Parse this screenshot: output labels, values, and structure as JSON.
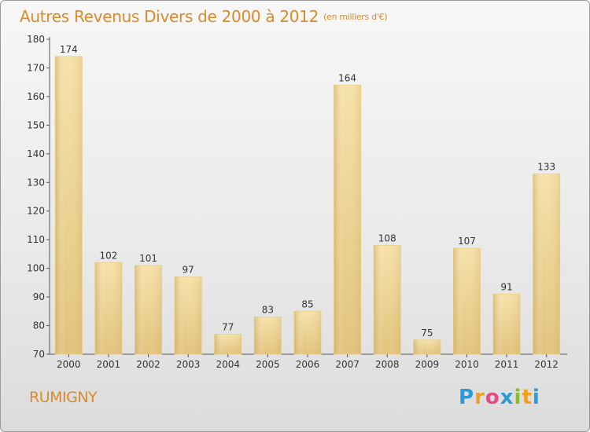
{
  "chart_data": {
    "type": "bar",
    "title": "Autres Revenus Divers de 2000 à 2012",
    "subtitle": "(en milliers d'€)",
    "categories": [
      "2000",
      "2001",
      "2002",
      "2003",
      "2004",
      "2005",
      "2006",
      "2007",
      "2008",
      "2009",
      "2010",
      "2011",
      "2012"
    ],
    "values": [
      174,
      102,
      101,
      97,
      77,
      83,
      85,
      164,
      108,
      75,
      107,
      91,
      133
    ],
    "ylim": [
      70,
      180
    ],
    "yticks": [
      70,
      80,
      90,
      100,
      110,
      120,
      130,
      140,
      150,
      160,
      170,
      180
    ],
    "xlabel": "",
    "ylabel": "",
    "grid": false,
    "bar_color": "#e2c279",
    "bar_highlight_color": "#f6e2a8"
  },
  "footer": {
    "commune": "RUMIGNY",
    "logo_letters": [
      "P",
      "r",
      "o",
      "x",
      "i",
      "t",
      "i"
    ],
    "logo_colors": [
      "#2a9bd6",
      "#f0a020",
      "#e34a86",
      "#2a9bd6",
      "#8bbd2a",
      "#f0a020",
      "#2a9bd6"
    ]
  }
}
